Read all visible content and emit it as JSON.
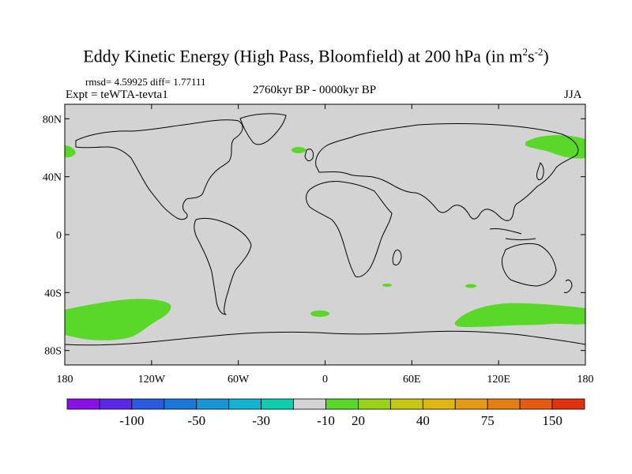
{
  "title": {
    "main": "Eddy Kinetic Energy (High Pass, Bloomfield) at 200 hPa (in m",
    "unit_m_exp": "2",
    "unit_s": "s",
    "unit_s_exp": "-2",
    "close": ")"
  },
  "header": {
    "stats": "rmsd= 4.59925 diff= 1.77111",
    "experiment": "Expt = teWTA-tevta1",
    "period": "2760kyr BP - 0000kyr BP",
    "season": "JJA"
  },
  "map": {
    "lat_ticks": [
      {
        "label": "80N",
        "lat": 80
      },
      {
        "label": "40N",
        "lat": 40
      },
      {
        "label": "0",
        "lat": 0
      },
      {
        "label": "40S",
        "lat": -40
      },
      {
        "label": "80S",
        "lat": -80
      }
    ],
    "lon_ticks": [
      {
        "label": "180",
        "lon": -180
      },
      {
        "label": "120W",
        "lon": -120
      },
      {
        "label": "60W",
        "lon": -60
      },
      {
        "label": "0",
        "lon": 0
      },
      {
        "label": "60E",
        "lon": 60
      },
      {
        "label": "120E",
        "lon": 120
      },
      {
        "label": "180",
        "lon": 180
      }
    ],
    "lat_range": [
      -90,
      90
    ],
    "lon_range": [
      -180,
      180
    ],
    "background_color": "#d3d3d3",
    "positive_color": "#5ad82a"
  },
  "colorbar": {
    "colors": [
      "#8a10e6",
      "#5a28e6",
      "#2a5ae0",
      "#1a78dc",
      "#1696d8",
      "#12b4d2",
      "#10ccb0",
      "#d3d3d3",
      "#5ad82a",
      "#9ad21a",
      "#c6c814",
      "#e0b612",
      "#e69a14",
      "#e67e12",
      "#e65a10",
      "#e03210"
    ],
    "labels": [
      "-100",
      "-50",
      "-30",
      "-10",
      "20",
      "40",
      "75",
      "150"
    ]
  }
}
